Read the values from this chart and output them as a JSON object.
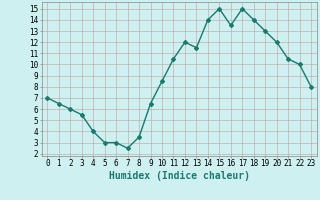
{
  "x": [
    0,
    1,
    2,
    3,
    4,
    5,
    6,
    7,
    8,
    9,
    10,
    11,
    12,
    13,
    14,
    15,
    16,
    17,
    18,
    19,
    20,
    21,
    22,
    23
  ],
  "y": [
    7.0,
    6.5,
    6.0,
    5.5,
    4.0,
    3.0,
    3.0,
    2.5,
    3.5,
    6.5,
    8.5,
    10.5,
    12.0,
    11.5,
    14.0,
    15.0,
    13.5,
    15.0,
    14.0,
    13.0,
    12.0,
    10.5,
    10.0,
    8.0
  ],
  "xlabel": "Humidex (Indice chaleur)",
  "line_color": "#1a7a6e",
  "marker": "D",
  "marker_size": 2,
  "bg_color": "#cef0f0",
  "grid_color": "#c0a0a0",
  "xlim": [
    -0.5,
    23.5
  ],
  "ylim": [
    1.8,
    15.6
  ],
  "yticks": [
    2,
    3,
    4,
    5,
    6,
    7,
    8,
    9,
    10,
    11,
    12,
    13,
    14,
    15
  ],
  "xticks": [
    0,
    1,
    2,
    3,
    4,
    5,
    6,
    7,
    8,
    9,
    10,
    11,
    12,
    13,
    14,
    15,
    16,
    17,
    18,
    19,
    20,
    21,
    22,
    23
  ],
  "tick_label_fontsize": 5.5,
  "xlabel_fontsize": 7,
  "line_width": 1.0
}
